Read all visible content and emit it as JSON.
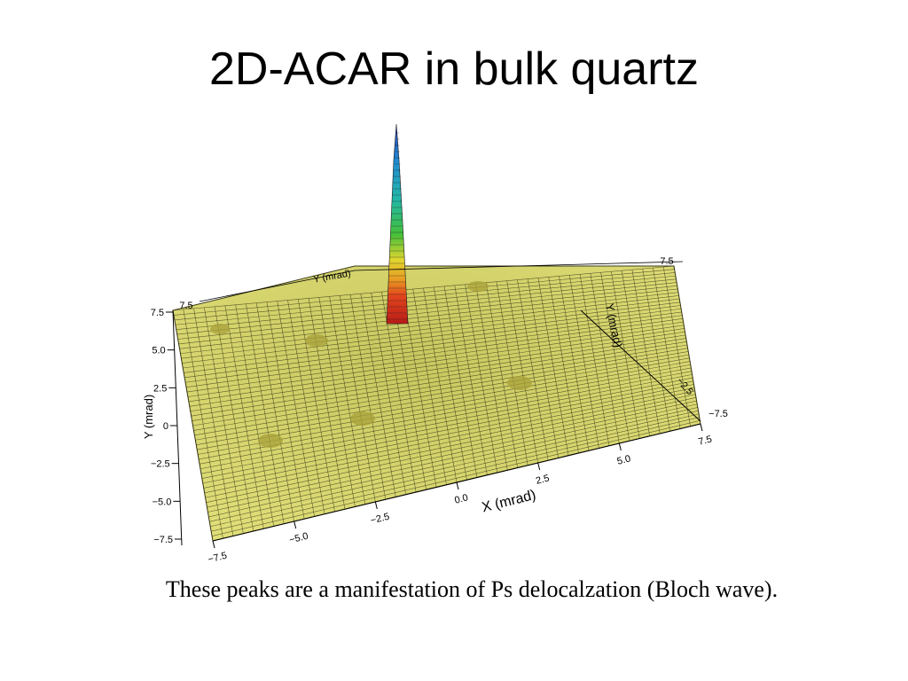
{
  "slide": {
    "title": "2D-ACAR in bulk quartz",
    "caption": "These peaks are a manifestation of Ps delocalzation (Bloch wave)."
  },
  "chart_data": {
    "type": "surface",
    "x_label": "X (mrad)",
    "y_label": "Y (mrad)",
    "x_ticks": [
      "−7.5",
      "−5.0",
      "−2.5",
      "0.0",
      "2.5",
      "5.0",
      "7.5"
    ],
    "y_ticks": [
      "−7.5",
      "−5.0",
      "−2.5",
      "0",
      "2.5",
      "5.0",
      "7.5"
    ],
    "xlim": [
      -7.5,
      7.5
    ],
    "ylim": [
      -7.5,
      7.5
    ],
    "surface_color": "#d9d96a",
    "mesh_color": "#2a2a10",
    "central_peak_colormap": [
      "#c0281e",
      "#e4671c",
      "#e8d02a",
      "#3fbf3a",
      "#1ea8b6",
      "#2a55c8"
    ]
  }
}
